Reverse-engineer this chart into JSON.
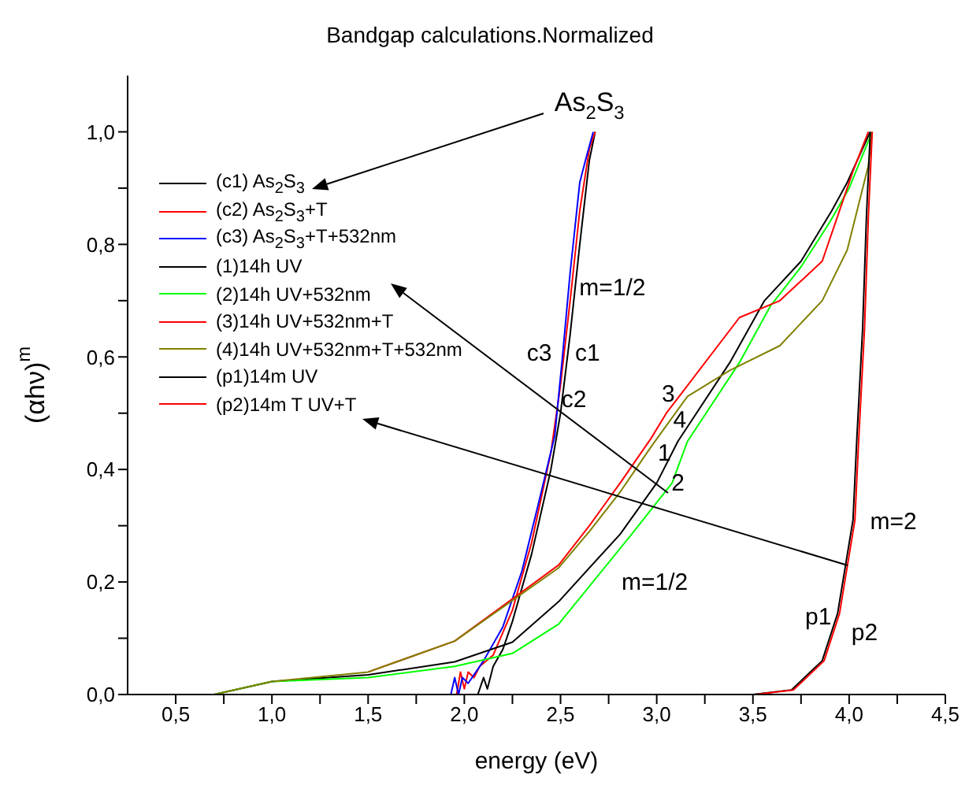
{
  "chart_data": {
    "type": "line",
    "title": "Bandgap calculations.Normalized",
    "xlabel": "energy (eV)",
    "ylabel": "(αhν)$^{m}$",
    "xlim": [
      0.25,
      4.5
    ],
    "ylim": [
      0,
      1.1
    ],
    "xticks": [
      {
        "value": 0.5,
        "label": "0,5"
      },
      {
        "value": 0.75,
        "label": null
      },
      {
        "value": 1,
        "label": "1,0"
      },
      {
        "value": 1.25,
        "label": null
      },
      {
        "value": 1.5,
        "label": "1,5"
      },
      {
        "value": 1.75,
        "label": null
      },
      {
        "value": 2,
        "label": "2,0"
      },
      {
        "value": 2.25,
        "label": null
      },
      {
        "value": 2.5,
        "label": "2,5"
      },
      {
        "value": 2.75,
        "label": null
      },
      {
        "value": 3,
        "label": "3,0"
      },
      {
        "value": 3.25,
        "label": null
      },
      {
        "value": 3.5,
        "label": "3,5"
      },
      {
        "value": 3.75,
        "label": null
      },
      {
        "value": 4,
        "label": "4,0"
      },
      {
        "value": 4.25,
        "label": null
      },
      {
        "value": 4.5,
        "label": "4,5"
      }
    ],
    "yticks": [
      {
        "value": 0,
        "label": "0,0"
      },
      {
        "value": 0.1,
        "label": null
      },
      {
        "value": 0.2,
        "label": "0,2"
      },
      {
        "value": 0.3,
        "label": null
      },
      {
        "value": 0.4,
        "label": "0,4"
      },
      {
        "value": 0.5,
        "label": null
      },
      {
        "value": 0.6,
        "label": "0,6"
      },
      {
        "value": 0.7,
        "label": null
      },
      {
        "value": 0.8,
        "label": "0,8"
      },
      {
        "value": 0.9,
        "label": null
      },
      {
        "value": 1,
        "label": "1,0"
      }
    ],
    "grid": false,
    "legend": "top left",
    "marker": "none",
    "line_style": "solid",
    "series": [
      {
        "name": "(c1) As$_{2}$S$_{3}$",
        "color": "#000000",
        "x": [
          2.07,
          2.1,
          2.12,
          2.15,
          2.2,
          2.25,
          2.35,
          2.45,
          2.5,
          2.55,
          2.6,
          2.65,
          2.68
        ],
        "values": [
          0,
          0.03,
          0.01,
          0.05,
          0.08,
          0.13,
          0.25,
          0.4,
          0.5,
          0.64,
          0.8,
          0.95,
          1.0
        ]
      },
      {
        "name": "(c2) As$_{2}$S$_{3}$+T",
        "color": "#ff0000",
        "x": [
          1.96,
          1.98,
          2.0,
          2.02,
          2.05,
          2.08,
          2.15,
          2.25,
          2.35,
          2.45,
          2.5,
          2.55,
          2.6,
          2.65,
          2.68
        ],
        "values": [
          0,
          0.04,
          0.01,
          0.04,
          0.03,
          0.05,
          0.07,
          0.15,
          0.27,
          0.43,
          0.55,
          0.7,
          0.86,
          0.97,
          1.0
        ]
      },
      {
        "name": "(c3) As$_{2}$S$_{3}$+T+532nm",
        "color": "#0000ff",
        "x": [
          1.93,
          1.95,
          1.97,
          1.99,
          2.02,
          2.1,
          2.2,
          2.3,
          2.4,
          2.47,
          2.51,
          2.55,
          2.6,
          2.63,
          2.67
        ],
        "values": [
          0,
          0.03,
          0,
          0.03,
          0.02,
          0.06,
          0.12,
          0.22,
          0.36,
          0.46,
          0.6,
          0.75,
          0.91,
          0.95,
          1.0
        ]
      },
      {
        "name": "(1)14h UV",
        "color": "#000000",
        "x": [
          0.7,
          1.0,
          1.5,
          1.95,
          2.25,
          2.49,
          2.81,
          3.0,
          3.11,
          3.38,
          3.56,
          3.75,
          3.91,
          3.99,
          4.11
        ],
        "values": [
          0,
          0.023,
          0.035,
          0.058,
          0.093,
          0.165,
          0.285,
          0.376,
          0.45,
          0.59,
          0.7,
          0.77,
          0.86,
          0.91,
          1.0
        ]
      },
      {
        "name": "(2)14h UV+532nm",
        "color": "#00ff00",
        "x": [
          0.7,
          1.0,
          1.5,
          1.95,
          2.25,
          2.49,
          2.87,
          3.08,
          3.16,
          3.43,
          3.59,
          3.75,
          3.9,
          4.0,
          4.12
        ],
        "values": [
          0,
          0.023,
          0.03,
          0.05,
          0.073,
          0.125,
          0.285,
          0.376,
          0.45,
          0.59,
          0.69,
          0.76,
          0.84,
          0.9,
          1.0
        ]
      },
      {
        "name": "(3)14h UV+532nm+T",
        "color": "#ff0000",
        "x": [
          1.5,
          1.95,
          2.49,
          2.65,
          2.81,
          2.97,
          3.05,
          3.43,
          3.64,
          3.86,
          3.96,
          4.02,
          4.1
        ],
        "values": [
          0.04,
          0.095,
          0.23,
          0.3,
          0.376,
          0.455,
          0.5,
          0.67,
          0.7,
          0.77,
          0.87,
          0.93,
          1.0
        ]
      },
      {
        "name": "(4)14h UV+532nm+T+532nm",
        "color": "#808000",
        "x": [
          0.7,
          1.0,
          1.5,
          1.95,
          2.49,
          2.65,
          2.81,
          2.97,
          3.16,
          3.38,
          3.64,
          3.86,
          3.99,
          4.1,
          4.12
        ],
        "values": [
          0,
          0.023,
          0.04,
          0.095,
          0.225,
          0.29,
          0.36,
          0.44,
          0.53,
          0.576,
          0.62,
          0.7,
          0.79,
          0.94,
          1.0
        ]
      },
      {
        "name": "(p1)14m UV",
        "color": "#000000",
        "x": [
          0.62,
          3.5,
          3.7,
          3.86,
          3.94,
          4.02,
          4.04,
          4.07,
          4.09,
          4.11
        ],
        "values": [
          0,
          0,
          0.008,
          0.06,
          0.144,
          0.31,
          0.455,
          0.65,
          0.85,
          1.0
        ]
      },
      {
        "name": "(p2)14m T UV+T",
        "color": "#ff0000",
        "x": [
          0.62,
          3.51,
          3.71,
          3.87,
          3.95,
          4.03,
          4.05,
          4.08,
          4.1,
          4.12
        ],
        "values": [
          0,
          0,
          0.008,
          0.06,
          0.144,
          0.31,
          0.455,
          0.65,
          0.85,
          1.0
        ]
      }
    ],
    "annotations": [
      "As$_{2}$S$_{3}$",
      "m=1/2",
      "c3",
      "c1",
      "c2",
      "3",
      "4",
      "1",
      "2",
      "m=1/2",
      "m=2",
      "p1",
      "p2"
    ]
  }
}
